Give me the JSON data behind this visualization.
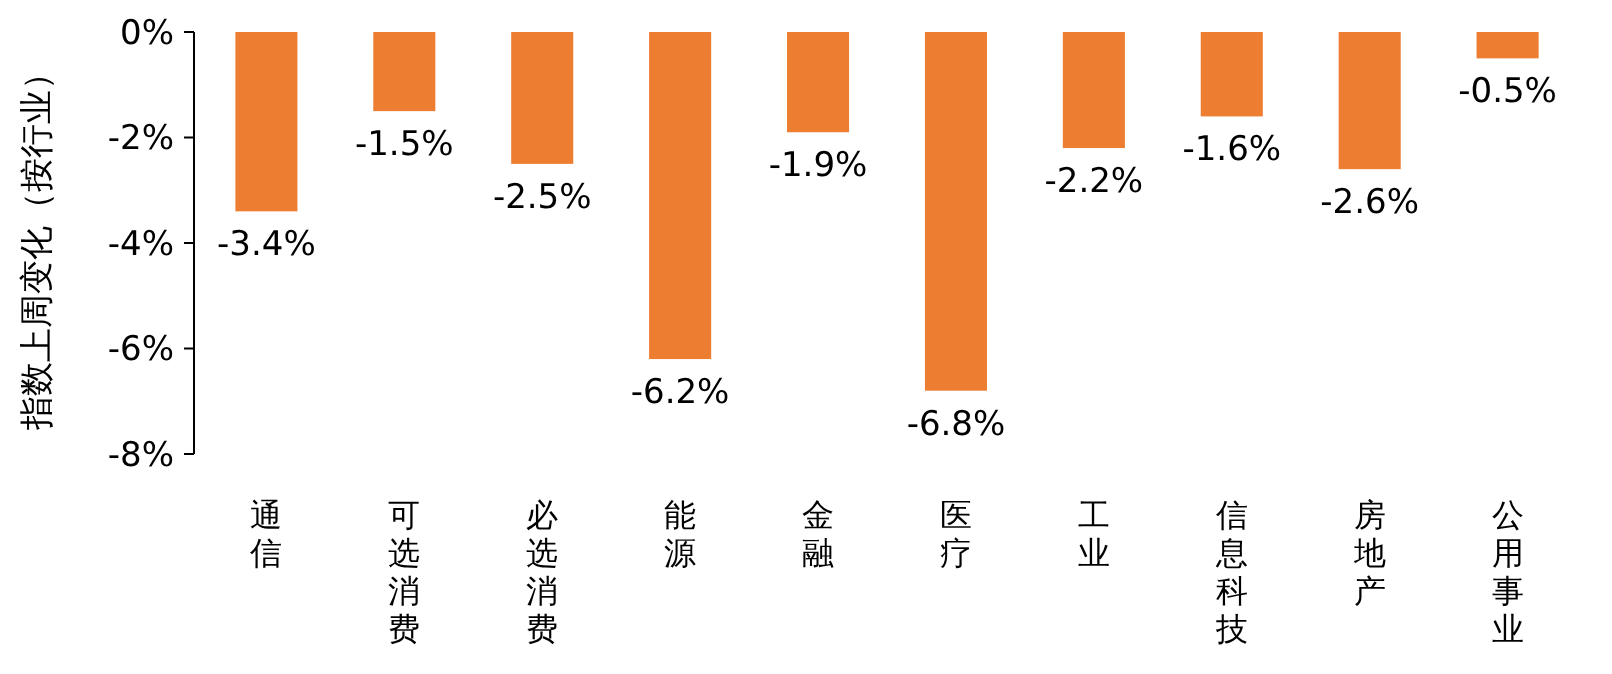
{
  "chart_data": {
    "type": "bar",
    "ylabel": "指数上周变化（按行业）",
    "categories": [
      "通信",
      "可选消费",
      "必选消费",
      "能源",
      "金融",
      "医疗",
      "工业",
      "信息科技",
      "房地产",
      "公用事业"
    ],
    "values": [
      -3.4,
      -1.5,
      -2.5,
      -6.2,
      -1.9,
      -6.8,
      -2.2,
      -1.6,
      -2.6,
      -0.5
    ],
    "value_labels": [
      "-3.4%",
      "-1.5%",
      "-2.5%",
      "-6.2%",
      "-1.9%",
      "-6.8%",
      "-2.2%",
      "-1.6%",
      "-2.6%",
      "-0.5%"
    ],
    "color": "#ed7d31",
    "ylim": [
      -8,
      0
    ],
    "yticks": [
      {
        "value": 0,
        "label": "0%"
      },
      {
        "value": -2,
        "label": "-2%"
      },
      {
        "value": -4,
        "label": "-4%"
      },
      {
        "value": -6,
        "label": "-6%"
      },
      {
        "value": -8,
        "label": "-8%"
      }
    ],
    "grid": false
  }
}
